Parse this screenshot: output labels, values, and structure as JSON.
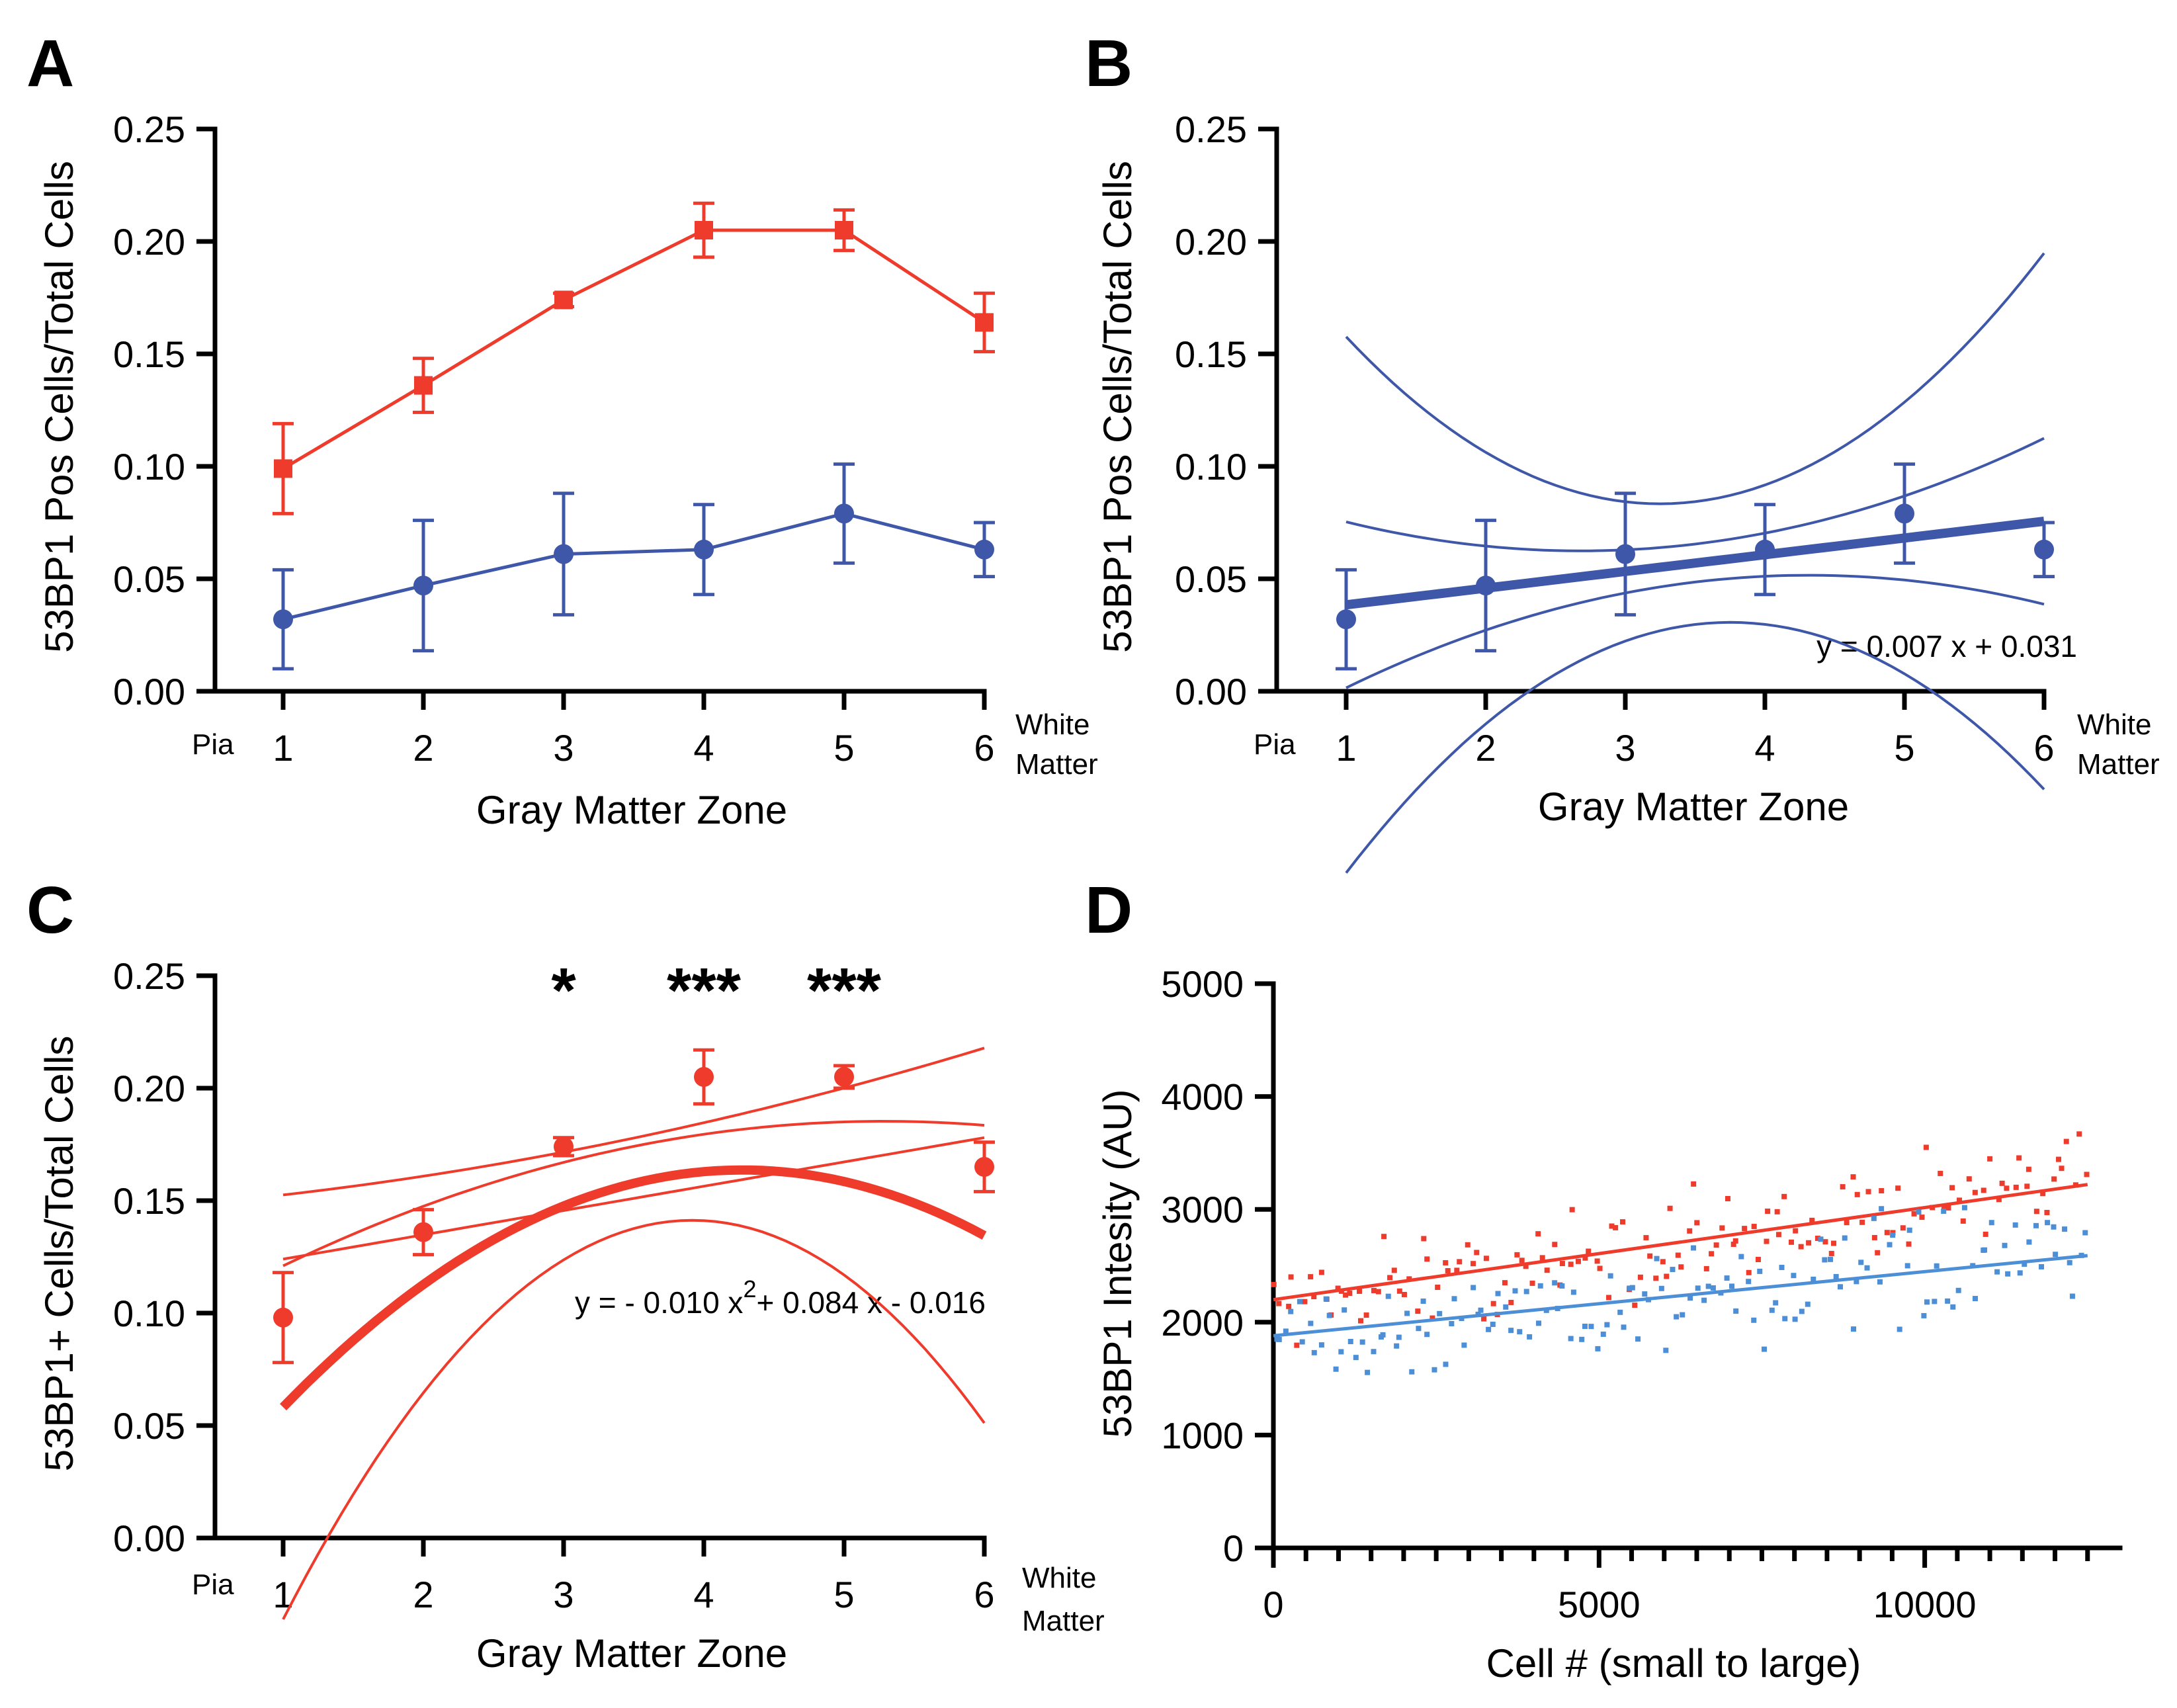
{
  "colors": {
    "red": "#ee3b2b",
    "blue": "#3e57a8",
    "lightblue": "#4c8fd6",
    "axis": "#000000"
  },
  "chart_data": [
    {
      "panel": "A",
      "type": "line",
      "title": "",
      "xlabel": "Gray Matter Zone",
      "ylabel": "53BP1 Pos Cells/Total Cells",
      "categories": [
        1,
        2,
        3,
        4,
        5,
        6
      ],
      "tick_labels_x": [
        "1",
        "2",
        "3",
        "4",
        "5",
        "6"
      ],
      "tick_labels_y": [
        "0.00",
        "0.05",
        "0.10",
        "0.15",
        "0.20",
        "0.25"
      ],
      "ylim": [
        0,
        0.25
      ],
      "x_left_note": "Pia",
      "x_right_note": [
        "White",
        "Matter"
      ],
      "series": [
        {
          "name": "red",
          "color": "#ee3b2b",
          "marker": "square",
          "values": [
            0.099,
            0.136,
            0.174,
            0.205,
            0.205,
            0.164
          ],
          "errors": [
            0.02,
            0.012,
            0.003,
            0.012,
            0.009,
            0.013
          ]
        },
        {
          "name": "blue",
          "color": "#3e57a8",
          "marker": "circle",
          "values": [
            0.032,
            0.047,
            0.061,
            0.063,
            0.079,
            0.063
          ],
          "errors": [
            0.022,
            0.029,
            0.027,
            0.02,
            0.022,
            0.012
          ]
        }
      ]
    },
    {
      "panel": "B",
      "type": "scatter",
      "title": "",
      "xlabel": "Gray Matter Zone",
      "ylabel": "53BP1 Pos Cells/Total Cells",
      "categories": [
        1,
        2,
        3,
        4,
        5,
        6
      ],
      "tick_labels_x": [
        "1",
        "2",
        "3",
        "4",
        "5",
        "6"
      ],
      "tick_labels_y": [
        "0.00",
        "0.05",
        "0.10",
        "0.15",
        "0.20",
        "0.25"
      ],
      "ylim": [
        0,
        0.25
      ],
      "x_left_note": "Pia",
      "x_right_note": [
        "White",
        "Matter"
      ],
      "equation": "y = 0.007 x + 0.031",
      "fit": {
        "kind": "linear",
        "coef": [
          0.031,
          0.00743
        ]
      },
      "series": [
        {
          "name": "blue",
          "color": "#3e57a8",
          "marker": "circle",
          "values": [
            0.032,
            0.047,
            0.061,
            0.063,
            0.079,
            0.063
          ],
          "errors": [
            0.022,
            0.029,
            0.027,
            0.02,
            0.022,
            0.012
          ]
        }
      ]
    },
    {
      "panel": "C",
      "type": "scatter",
      "title": "",
      "xlabel": "Gray Matter Zone",
      "ylabel": "53BP1+ Cells/Total Cells",
      "categories": [
        1,
        2,
        3,
        4,
        5,
        6
      ],
      "tick_labels_x": [
        "1",
        "2",
        "3",
        "4",
        "5",
        "6"
      ],
      "tick_labels_y": [
        "0.00",
        "0.05",
        "0.10",
        "0.15",
        "0.20",
        "0.25"
      ],
      "ylim": [
        0,
        0.25
      ],
      "x_left_note": "Pia",
      "x_right_note": [
        "White",
        "Matter"
      ],
      "equation_parts": {
        "prefix": "y = - 0.010 x",
        "sup": "2",
        "suffix": "+ 0.084 x - 0.016"
      },
      "fit": {
        "kind": "quadratic",
        "coef": [
          -0.016,
          0.084,
          -0.00982
        ]
      },
      "significance": [
        {
          "x": 3,
          "label": "*"
        },
        {
          "x": 4,
          "label": "***"
        },
        {
          "x": 5,
          "label": "***"
        }
      ],
      "series": [
        {
          "name": "red",
          "color": "#ee3b2b",
          "marker": "circle",
          "values": [
            0.098,
            0.136,
            0.174,
            0.205,
            0.205,
            0.165
          ],
          "errors": [
            0.02,
            0.01,
            0.004,
            0.012,
            0.005,
            0.011
          ]
        }
      ]
    },
    {
      "panel": "D",
      "type": "scatter",
      "title": "",
      "xlabel": "Cell # (small to large)",
      "ylabel": "53BP1 Intesity (AU)",
      "xlim": [
        0,
        13000
      ],
      "ylim": [
        0,
        5000
      ],
      "tick_labels_x": [
        "0",
        "5000",
        "10000"
      ],
      "tick_labels_y": [
        "0",
        "1000",
        "2000",
        "3000",
        "4000",
        "5000"
      ],
      "series": [
        {
          "name": "red",
          "color": "#ee3b2b",
          "count": 150,
          "fit": [
            2200,
            3220
          ]
        },
        {
          "name": "lightblue",
          "color": "#4c8fd6",
          "count": 150,
          "fit": [
            1880,
            2590
          ]
        }
      ]
    }
  ]
}
